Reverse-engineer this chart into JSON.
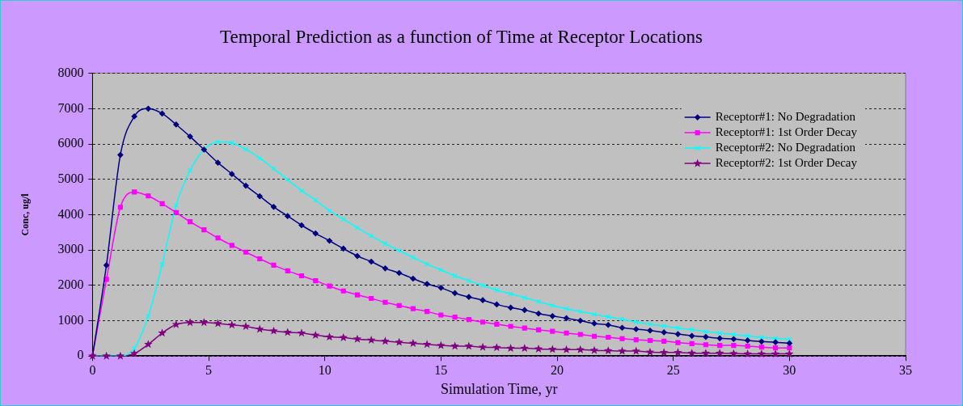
{
  "chart_data": {
    "type": "line",
    "title": "Temporal Prediction as a function of Time at Receptor Locations",
    "xlabel": "Simulation Time, yr",
    "ylabel": "Conc, ug/l",
    "x": [
      0,
      0.6,
      1.2,
      1.8,
      2.4,
      3.0,
      3.6,
      4.2,
      4.8,
      5.4,
      6.0,
      6.6,
      7.2,
      7.8,
      8.4,
      9.0,
      9.6,
      10.2,
      10.8,
      11.4,
      12.0,
      12.6,
      13.2,
      13.8,
      14.4,
      15.0,
      15.6,
      16.2,
      16.8,
      17.4,
      18.0,
      18.6,
      19.2,
      19.8,
      20.4,
      21.0,
      21.6,
      22.2,
      22.8,
      23.4,
      24.0,
      24.6,
      25.2,
      25.8,
      26.4,
      27.0,
      27.6,
      28.2,
      28.8,
      29.4,
      30.0
    ],
    "xlim": [
      0,
      35
    ],
    "xticks": [
      0,
      5,
      10,
      15,
      20,
      25,
      30,
      35
    ],
    "ylim": [
      0,
      8000
    ],
    "yticks": [
      0,
      1000,
      2000,
      3000,
      4000,
      5000,
      6000,
      7000,
      8000
    ],
    "grid": "y",
    "legend": "top right",
    "line_style": "solid",
    "series": [
      {
        "name": "Receptor#1: No Degradation",
        "color": "#000080",
        "marker": "diamond",
        "values": [
          0,
          2570,
          5690,
          6780,
          7000,
          6860,
          6550,
          6210,
          5840,
          5470,
          5150,
          4820,
          4520,
          4220,
          3960,
          3700,
          3470,
          3260,
          3040,
          2830,
          2670,
          2480,
          2350,
          2190,
          2040,
          1930,
          1780,
          1670,
          1580,
          1460,
          1370,
          1300,
          1200,
          1130,
          1070,
          1000,
          920,
          880,
          800,
          760,
          720,
          670,
          620,
          570,
          540,
          500,
          480,
          440,
          410,
          390,
          360
        ]
      },
      {
        "name": "Receptor#1: 1st Order Decay",
        "color": "#ff00ff",
        "marker": "square",
        "values": [
          0,
          2170,
          4210,
          4640,
          4530,
          4310,
          4060,
          3800,
          3570,
          3340,
          3130,
          2940,
          2750,
          2570,
          2410,
          2270,
          2130,
          1980,
          1840,
          1730,
          1630,
          1520,
          1430,
          1340,
          1260,
          1160,
          1100,
          1030,
          960,
          900,
          840,
          790,
          740,
          700,
          650,
          610,
          560,
          530,
          490,
          460,
          440,
          420,
          380,
          350,
          320,
          300,
          300,
          280,
          250,
          230,
          230
        ]
      },
      {
        "name": "Receptor#2: No Degradation",
        "color": "#00ffff",
        "marker": "cross",
        "values": [
          0,
          0,
          0,
          220,
          1130,
          2590,
          4260,
          5250,
          5840,
          6060,
          6030,
          5850,
          5600,
          5300,
          4990,
          4680,
          4410,
          4110,
          3870,
          3630,
          3400,
          3180,
          2980,
          2790,
          2600,
          2440,
          2270,
          2130,
          2000,
          1870,
          1760,
          1650,
          1540,
          1430,
          1340,
          1260,
          1180,
          1110,
          1040,
          960,
          900,
          850,
          790,
          750,
          690,
          650,
          610,
          570,
          530,
          500,
          470
        ]
      },
      {
        "name": "Receptor#2: 1st Order Decay",
        "color": "#800080",
        "marker": "star",
        "values": [
          0,
          0,
          0,
          70,
          330,
          650,
          890,
          950,
          950,
          920,
          880,
          840,
          760,
          710,
          670,
          650,
          590,
          540,
          520,
          480,
          450,
          420,
          390,
          360,
          330,
          300,
          280,
          280,
          250,
          240,
          220,
          220,
          200,
          190,
          180,
          180,
          160,
          150,
          140,
          140,
          110,
          100,
          100,
          80,
          80,
          80,
          70,
          60,
          60,
          60,
          60
        ]
      }
    ]
  }
}
